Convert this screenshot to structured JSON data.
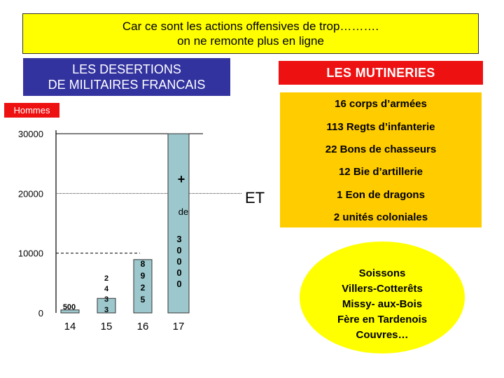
{
  "banner": {
    "line1": "Car ce sont les actions offensives de trop……….",
    "line2": "on ne remonte plus en ligne"
  },
  "desertions": {
    "title_line1": "LES DESERTIONS",
    "title_line2": "DE MILITAIRES FRANCAIS"
  },
  "mutineries": {
    "title": "LES MUTINERIES",
    "units": [
      "16 corps d’armées",
      "113 Regts d’infanterie",
      "22 Bons de chasseurs",
      "12 Bie d’artillerie",
      "1 Eon de dragons",
      "2 unités coloniales"
    ]
  },
  "et_label": "ET",
  "places": [
    "Soissons",
    "Villers-Cotterêts",
    "Missy- aux-Bois",
    "Fère en Tardenois",
    "Couvres…"
  ],
  "chart_data": {
    "type": "bar",
    "ylabel": "Hommes",
    "categories": [
      "14",
      "15",
      "16",
      "17"
    ],
    "values": [
      500,
      2433,
      8925,
      30000
    ],
    "value_labels": [
      "500",
      "2 4 3 3",
      "8 9 2 5",
      "3 0 0 0 0"
    ],
    "ylim": [
      0,
      30000
    ],
    "y_ticks": [
      0,
      10000,
      20000,
      30000
    ],
    "y_tick_labels": [
      "0",
      "10000",
      "20000",
      "30000"
    ],
    "annotations": [
      "+",
      "de"
    ],
    "grid": true,
    "colors": {
      "bar_fill": "#9cc7cc",
      "bar_stroke": "#333333"
    }
  }
}
